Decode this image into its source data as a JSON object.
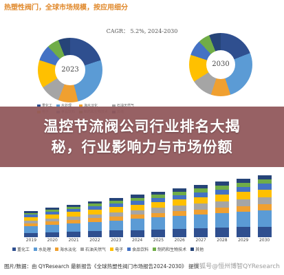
{
  "header": {
    "note": "热塑性阀门，全球市场规模，按应用细分"
  },
  "cagr": "CAGR： 5.2%, 2024-2030",
  "donuts": [
    {
      "year": "2023"
    },
    {
      "year": "2030"
    }
  ],
  "donut_legend": [
    "重化工",
    "水处理",
    "海水淡化",
    "石油天然气",
    "电子",
    "食品饮料",
    "制药和生物技术",
    "其他"
  ],
  "banner": {
    "line1": "温控节流阀公司行业排名大揭",
    "line2": "秘，行业影响力与市场份额"
  },
  "bar_chart": {
    "years": [
      "2019",
      "2020",
      "2021",
      "2022",
      "2023",
      "2024",
      "2025",
      "2026",
      "2027",
      "2028",
      "2029",
      "2030"
    ],
    "legend": [
      "重化工",
      "水处理",
      "海水淡化",
      "石油天然气",
      "电子",
      "食品饮料",
      "制药和生物技术",
      "其他"
    ]
  },
  "colors": {
    "series": [
      "#2f4f8f",
      "#5b9bd5",
      "#f0a030",
      "#a5a5a5",
      "#ffc000",
      "#4472c4",
      "#70ad47",
      "#264478"
    ],
    "banner": "#91585c"
  },
  "footer": {
    "source": "图片/数据：由 QYResearch 最新报告《全球热塑性阀门市场报告2024-2030》 提供",
    "watermark": "搜狐号@恒州博智QYResearch"
  }
}
